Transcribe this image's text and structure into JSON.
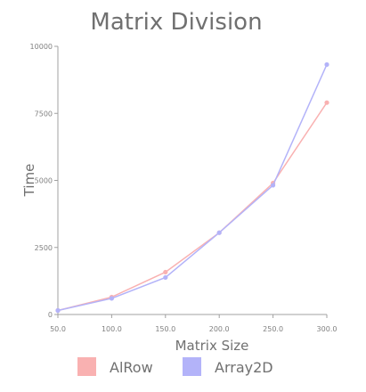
{
  "chart_data": {
    "type": "line",
    "title": "Matrix Division",
    "xlabel": "Matrix Size",
    "ylabel": "Time",
    "x": [
      50,
      100,
      150,
      200,
      250,
      300
    ],
    "x_tick_labels": [
      "50.0",
      "100.0",
      "150.0",
      "200.0",
      "250.0",
      "300.0"
    ],
    "y_tick_labels": [
      "0",
      "2500",
      "5000",
      "7500",
      "10000"
    ],
    "y_ticks": [
      0,
      2500,
      5000,
      7500,
      10000
    ],
    "xlim": [
      50,
      300
    ],
    "ylim": [
      0,
      10000
    ],
    "grid": false,
    "legend_position": "bottom",
    "series": [
      {
        "name": "AlRow",
        "color": "#f9b1b1",
        "values": [
          150,
          650,
          1580,
          3050,
          4900,
          7900
        ]
      },
      {
        "name": "Array2D",
        "color": "#b3b3f9",
        "values": [
          150,
          600,
          1380,
          3050,
          4820,
          9320
        ]
      }
    ]
  }
}
